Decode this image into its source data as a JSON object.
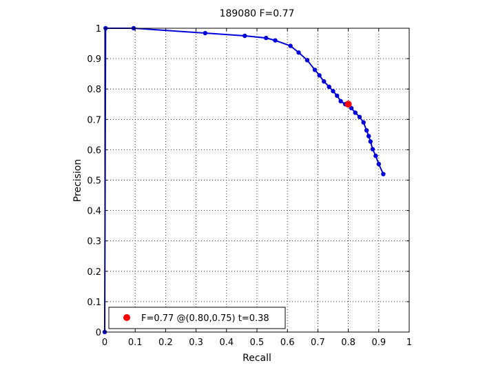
{
  "chart_data": {
    "type": "line",
    "title": "189080 F=0.77",
    "xlabel": "Recall",
    "ylabel": "Precision",
    "xlim": [
      0,
      1
    ],
    "ylim": [
      0,
      1
    ],
    "xticks": [
      "0",
      "0.1",
      "0.2",
      "0.3",
      "0.4",
      "0.5",
      "0.6",
      "0.7",
      "0.8",
      "0.9",
      "1"
    ],
    "yticks": [
      "0",
      "0.1",
      "0.2",
      "0.3",
      "0.4",
      "0.5",
      "0.6",
      "0.7",
      "0.8",
      "0.9",
      "1"
    ],
    "grid": true,
    "series_color": "#0000dd",
    "series": [
      {
        "x": [
          0.0,
          0.003,
          0.095,
          0.33,
          0.46,
          0.53,
          0.56,
          0.61,
          0.637,
          0.665,
          0.69,
          0.705,
          0.72,
          0.737,
          0.75,
          0.763,
          0.775,
          0.79,
          0.81,
          0.823,
          0.837,
          0.85,
          0.86,
          0.867,
          0.873,
          0.88,
          0.89,
          0.9,
          0.915
        ],
        "y": [
          0.0,
          1.0,
          1.0,
          0.984,
          0.975,
          0.968,
          0.96,
          0.942,
          0.92,
          0.895,
          0.863,
          0.845,
          0.825,
          0.807,
          0.793,
          0.778,
          0.76,
          0.75,
          0.737,
          0.722,
          0.708,
          0.69,
          0.664,
          0.645,
          0.627,
          0.602,
          0.58,
          0.553,
          0.52
        ]
      }
    ],
    "highlight": {
      "x": 0.8,
      "y": 0.75,
      "color": "#ff0000"
    },
    "legend": {
      "text": "F=0.77 @(0.80,0.75) t=0.38",
      "position": "bottom-left"
    }
  }
}
